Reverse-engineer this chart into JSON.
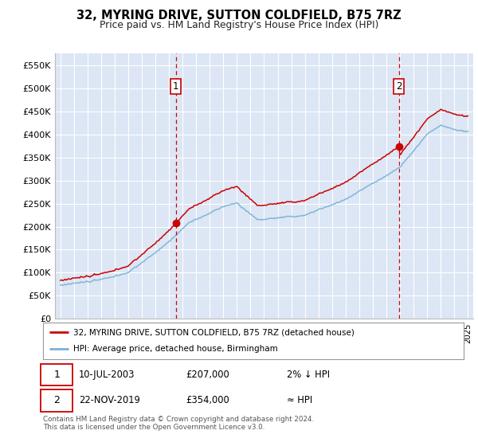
{
  "title": "32, MYRING DRIVE, SUTTON COLDFIELD, B75 7RZ",
  "subtitle": "Price paid vs. HM Land Registry's House Price Index (HPI)",
  "ylim": [
    0,
    575000
  ],
  "yticks": [
    0,
    50000,
    100000,
    150000,
    200000,
    250000,
    300000,
    350000,
    400000,
    450000,
    500000,
    550000
  ],
  "ytick_labels": [
    "£0",
    "£50K",
    "£100K",
    "£150K",
    "£200K",
    "£250K",
    "£300K",
    "£350K",
    "£400K",
    "£450K",
    "£500K",
    "£550K"
  ],
  "plot_bg": "#dce6f5",
  "grid_color": "#ffffff",
  "line_color_red": "#cc0000",
  "line_color_blue": "#7ab0d4",
  "sale1_year": 2003.53,
  "sale1_price": 207000,
  "sale2_year": 2019.9,
  "sale2_price": 354000,
  "legend_line1": "32, MYRING DRIVE, SUTTON COLDFIELD, B75 7RZ (detached house)",
  "legend_line2": "HPI: Average price, detached house, Birmingham",
  "footer1": "Contains HM Land Registry data © Crown copyright and database right 2024.",
  "footer2": "This data is licensed under the Open Government Licence v3.0.",
  "table_row1": [
    "1",
    "10-JUL-2003",
    "£207,000",
    "2% ↓ HPI"
  ],
  "table_row2": [
    "2",
    "22-NOV-2019",
    "£354,000",
    "≈ HPI"
  ]
}
